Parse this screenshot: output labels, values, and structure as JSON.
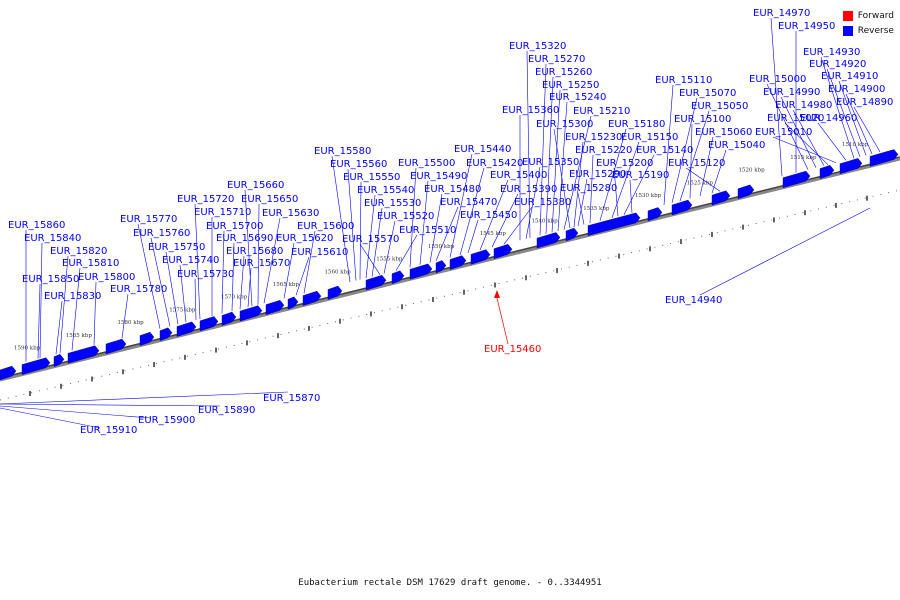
{
  "caption": "Eubacterium rectale DSM 17629 draft genome. - 0..3344951",
  "legend": [
    {
      "label": "Forward",
      "color": "#ff0000"
    },
    {
      "label": "Reverse",
      "color": "#0000ff"
    }
  ],
  "colors": {
    "forward": "#ff0000",
    "reverse": "#0000ff",
    "axis": "#555555"
  },
  "axis_ticks": [
    {
      "label": "1590 kbp",
      "kbp": 1590
    },
    {
      "label": "1585 kbp",
      "kbp": 1585
    },
    {
      "label": "1580 kbp",
      "kbp": 1580
    },
    {
      "label": "1575 kbp",
      "kbp": 1575
    },
    {
      "label": "1570 kbp",
      "kbp": 1570
    },
    {
      "label": "1565 kbp",
      "kbp": 1565
    },
    {
      "label": "1560 kbp",
      "kbp": 1560
    },
    {
      "label": "1555 kbp",
      "kbp": 1555
    },
    {
      "label": "1550 kbp",
      "kbp": 1550
    },
    {
      "label": "1545 kbp",
      "kbp": 1545
    },
    {
      "label": "1540 kbp",
      "kbp": 1540
    },
    {
      "label": "1535 kbp",
      "kbp": 1535
    },
    {
      "label": "1530 kbp",
      "kbp": 1530
    },
    {
      "label": "1525 kbp",
      "kbp": 1525
    },
    {
      "label": "1520 kbp",
      "kbp": 1520
    },
    {
      "label": "1515 kbp",
      "kbp": 1515
    },
    {
      "label": "1510 kbp",
      "kbp": 1510
    }
  ],
  "genes_above": [
    "EUR_15860",
    "EUR_15840",
    "EUR_15820",
    "EUR_15810",
    "EUR_15850",
    "EUR_15800",
    "EUR_15830",
    "EUR_15780",
    "EUR_15770",
    "EUR_15760",
    "EUR_15750",
    "EUR_15740",
    "EUR_15730",
    "EUR_15720",
    "EUR_15710",
    "EUR_15700",
    "EUR_15690",
    "EUR_15680",
    "EUR_15670",
    "EUR_15660",
    "EUR_15650",
    "EUR_15630",
    "EUR_15620",
    "EUR_15610",
    "EUR_15600",
    "EUR_15580",
    "EUR_15560",
    "EUR_15550",
    "EUR_15540",
    "EUR_15530",
    "EUR_15570",
    "EUR_15520",
    "EUR_15510",
    "EUR_15500",
    "EUR_15490",
    "EUR_15480",
    "EUR_15470",
    "EUR_15440",
    "EUR_15420",
    "EUR_15450",
    "EUR_15400",
    "EUR_15390",
    "EUR_15380",
    "EUR_15360",
    "EUR_15350",
    "EUR_15320",
    "EUR_15270",
    "EUR_15260",
    "EUR_15250",
    "EUR_15240",
    "EUR_15210",
    "EUR_15300",
    "EUR_15230",
    "EUR_15290",
    "EUR_15280",
    "EUR_15220",
    "EUR_15180",
    "EUR_15150",
    "EUR_15200",
    "EUR_15140",
    "EUR_15190",
    "EUR_15110",
    "EUR_15070",
    "EUR_15050",
    "EUR_15100",
    "EUR_15060",
    "EUR_15040",
    "EUR_15120",
    "EUR_14970",
    "EUR_14950",
    "EUR_15000",
    "EUR_14990",
    "EUR_14980",
    "EUR_15020",
    "EUR_15010",
    "EUR_14960",
    "EUR_14930",
    "EUR_14920",
    "EUR_14910",
    "EUR_14900",
    "EUR_14890"
  ],
  "genes_below": [
    "EUR_15870",
    "EUR_15890",
    "EUR_15900",
    "EUR_15910",
    "EUR_14940"
  ],
  "gene_forward": "EUR_15460"
}
